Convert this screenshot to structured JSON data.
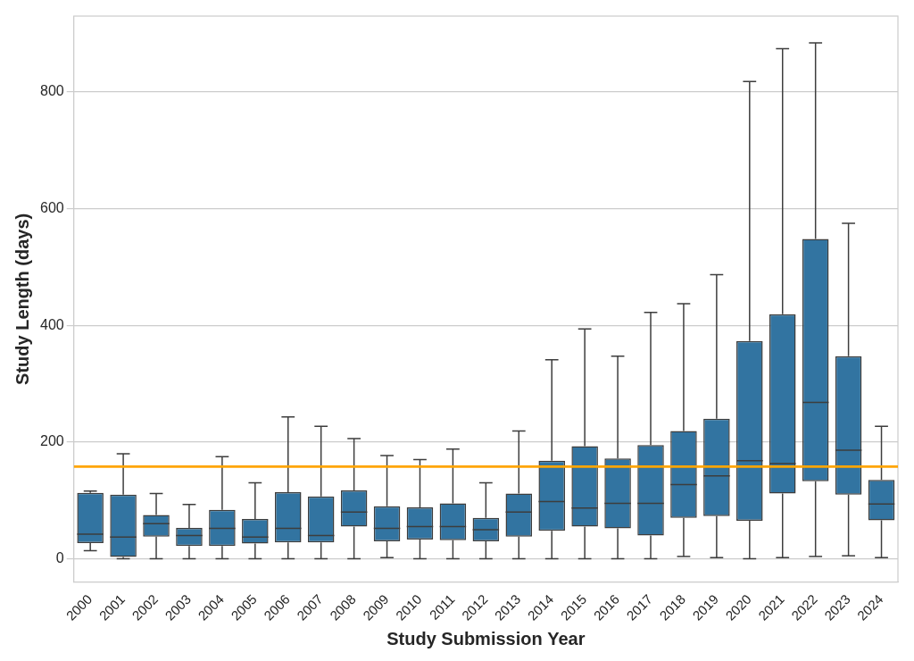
{
  "chart_data": {
    "type": "boxplot",
    "x_label": "Study Submission Year",
    "y_label": "Study Length (days)",
    "categories": [
      "2000",
      "2001",
      "2002",
      "2003",
      "2004",
      "2005",
      "2006",
      "2007",
      "2008",
      "2009",
      "2010",
      "2011",
      "2012",
      "2013",
      "2014",
      "2015",
      "2016",
      "2017",
      "2018",
      "2019",
      "2020",
      "2021",
      "2022",
      "2023",
      "2024"
    ],
    "min": [
      14,
      0,
      0,
      0,
      0,
      0,
      0,
      0,
      0,
      2,
      0,
      0,
      0,
      0,
      0,
      0,
      0,
      0,
      4,
      2,
      0,
      2,
      4,
      5,
      2
    ],
    "q1": [
      27,
      3,
      38,
      22,
      22,
      26,
      28,
      28,
      55,
      30,
      33,
      32,
      30,
      38,
      48,
      55,
      52,
      40,
      70,
      73,
      65,
      112,
      133,
      110,
      66
    ],
    "median": [
      42,
      37,
      60,
      40,
      52,
      37,
      52,
      40,
      80,
      52,
      55,
      55,
      50,
      80,
      98,
      87,
      95,
      95,
      127,
      142,
      168,
      163,
      268,
      186,
      94
    ],
    "q3": [
      113,
      110,
      75,
      53,
      84,
      68,
      114,
      107,
      117,
      90,
      88,
      95,
      70,
      112,
      168,
      193,
      172,
      195,
      219,
      240,
      373,
      419,
      548,
      347,
      135
    ],
    "max": [
      116,
      180,
      112,
      93,
      175,
      130,
      243,
      227,
      206,
      177,
      170,
      188,
      130,
      219,
      341,
      394,
      347,
      422,
      437,
      487,
      818,
      874,
      884,
      575,
      227
    ],
    "color": "#3274a1",
    "reference_line": {
      "value": 158,
      "color": "#ffa500"
    },
    "ylim": [
      -40,
      930
    ],
    "yticks": [
      0,
      200,
      400,
      600,
      800
    ],
    "grid": "y"
  }
}
